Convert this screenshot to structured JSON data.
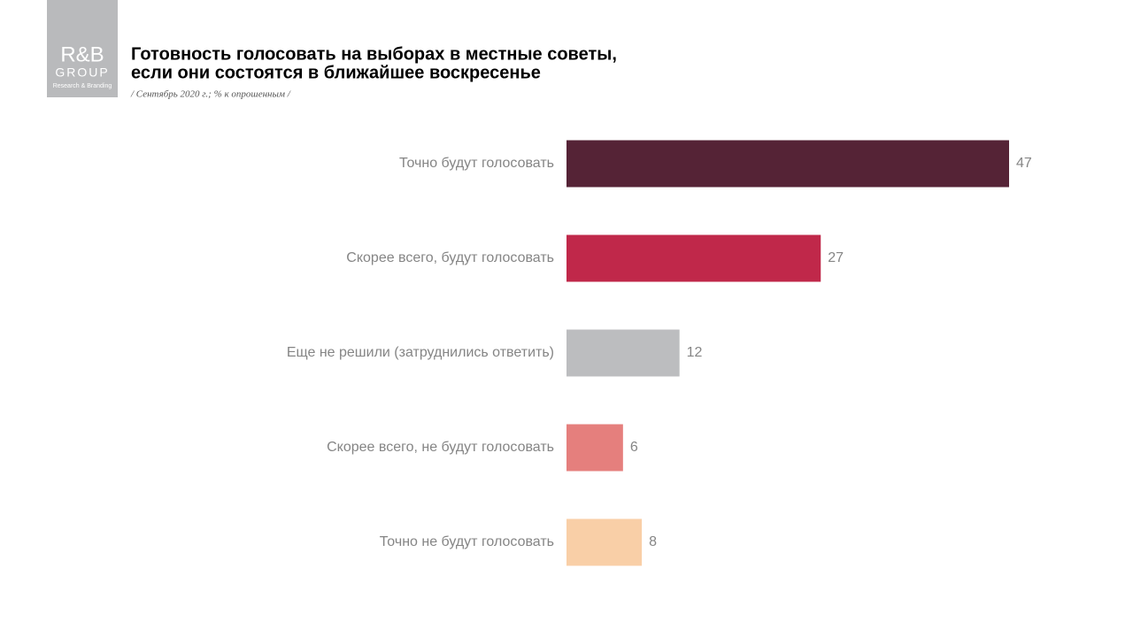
{
  "logo": {
    "brand": "R&B",
    "name": "GROUP",
    "tagline": "Research & Branding"
  },
  "chart_data": {
    "type": "bar",
    "orientation": "horizontal",
    "title": [
      "Готовность голосовать на выборах в местные советы,",
      "если они состоятся в ближайшее воскресенье"
    ],
    "subtitle": "/ Сентябрь 2020 г.; % к опрошенным  /",
    "categories": [
      "Точно будут голосовать",
      "Скорее всего, будут  голосовать",
      "Еще не решили  (затруднились  ответить)",
      "Скорее всего, не будут  голосовать",
      "Точно не будут  голосовать"
    ],
    "values": [
      47,
      27,
      12,
      6,
      8
    ],
    "colors": [
      "#552336",
      "#c0284a",
      "#bcbdbf",
      "#e57f7d",
      "#f9cfa7"
    ]
  }
}
